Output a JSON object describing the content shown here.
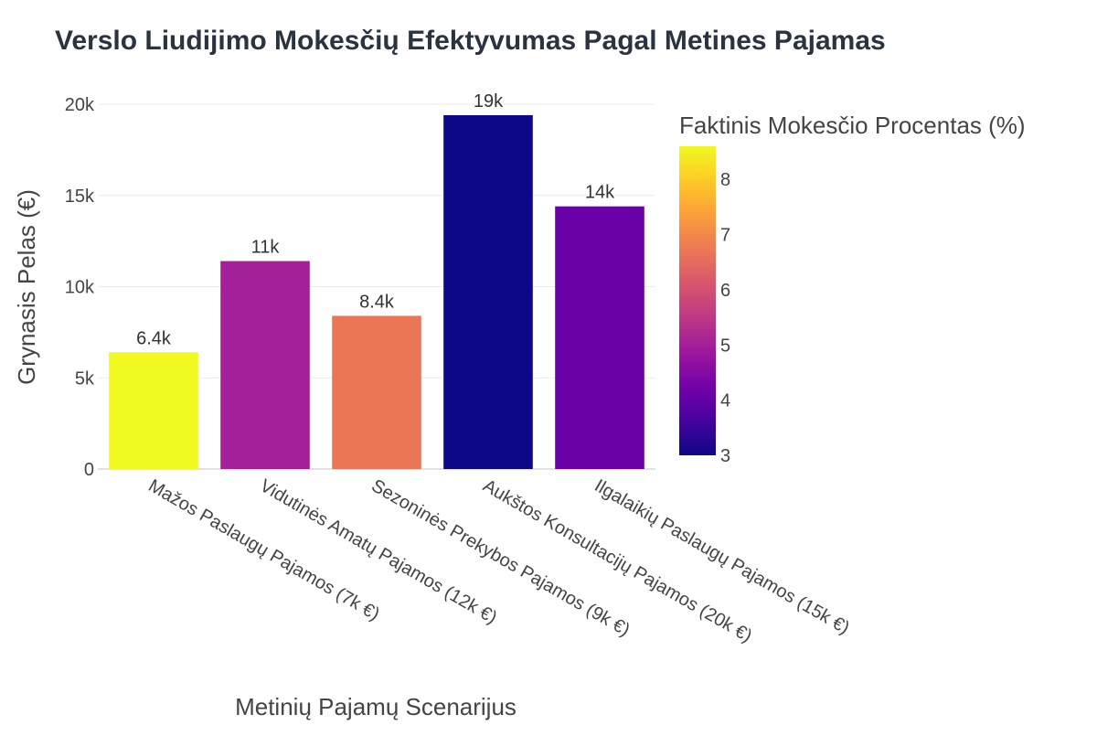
{
  "chart_data": {
    "type": "bar",
    "title": "Verslo Liudijimo Mokesčių Efektyvumas Pagal Metines Pajamas",
    "xlabel": "Metinių Pajamų Scenarijus",
    "ylabel": "Grynasis Pelas (€)",
    "categories": [
      "Mažos Paslaugų Pajamos (7k €)",
      "Vidutinės Amatų Pajamos (12k €)",
      "Sezoninės Prekybos Pajamos (9k €)",
      "Aukštos Konsultacijų Pajamos (20k €)",
      "Ilgalaikių Paslaugų Pajamos (15k €)"
    ],
    "values": [
      6400,
      11400,
      8400,
      19400,
      14400
    ],
    "value_labels": [
      "6.4k",
      "11k",
      "8.4k",
      "19k",
      "14k"
    ],
    "color_values": [
      8.6,
      5.0,
      6.7,
      3.0,
      4.1
    ],
    "ylim": [
      0,
      20000
    ],
    "yticks": [
      0,
      5000,
      10000,
      15000,
      20000
    ],
    "ytick_labels": [
      "0",
      "5k",
      "10k",
      "15k",
      "20k"
    ],
    "grid": true,
    "colorbar": {
      "title": "Faktinis Mokesčio Procentas (%)",
      "range": [
        3.0,
        8.6
      ],
      "ticks": [
        3,
        4,
        5,
        6,
        7,
        8
      ],
      "tick_labels": [
        "3",
        "4",
        "5",
        "6",
        "7",
        "8"
      ],
      "colorscale": "plasma"
    }
  }
}
